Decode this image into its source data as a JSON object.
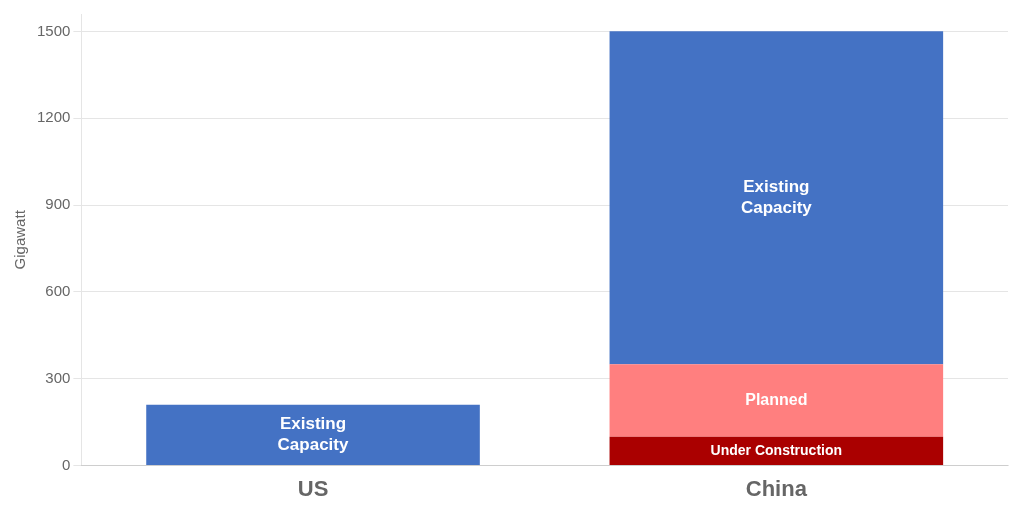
{
  "chart_data": {
    "type": "bar",
    "stacked": true,
    "grid": true,
    "categories": [
      "US",
      "China"
    ],
    "ylabel": "Gigawatt",
    "ylim": [
      0,
      1560
    ],
    "yticks": [
      0,
      300,
      600,
      900,
      1200,
      1500
    ],
    "series": [
      {
        "color": "#AA0000",
        "values": [
          0,
          100
        ],
        "labels": [
          null,
          "Under Construction"
        ]
      },
      {
        "color": "#FF7F7F",
        "values": [
          0,
          250
        ],
        "labels": [
          null,
          "Planned"
        ]
      },
      {
        "color": "#4472C4",
        "values": [
          210,
          1150
        ],
        "labels": [
          "Existing\nCapacity",
          "Existing\nCapacity"
        ]
      }
    ]
  }
}
